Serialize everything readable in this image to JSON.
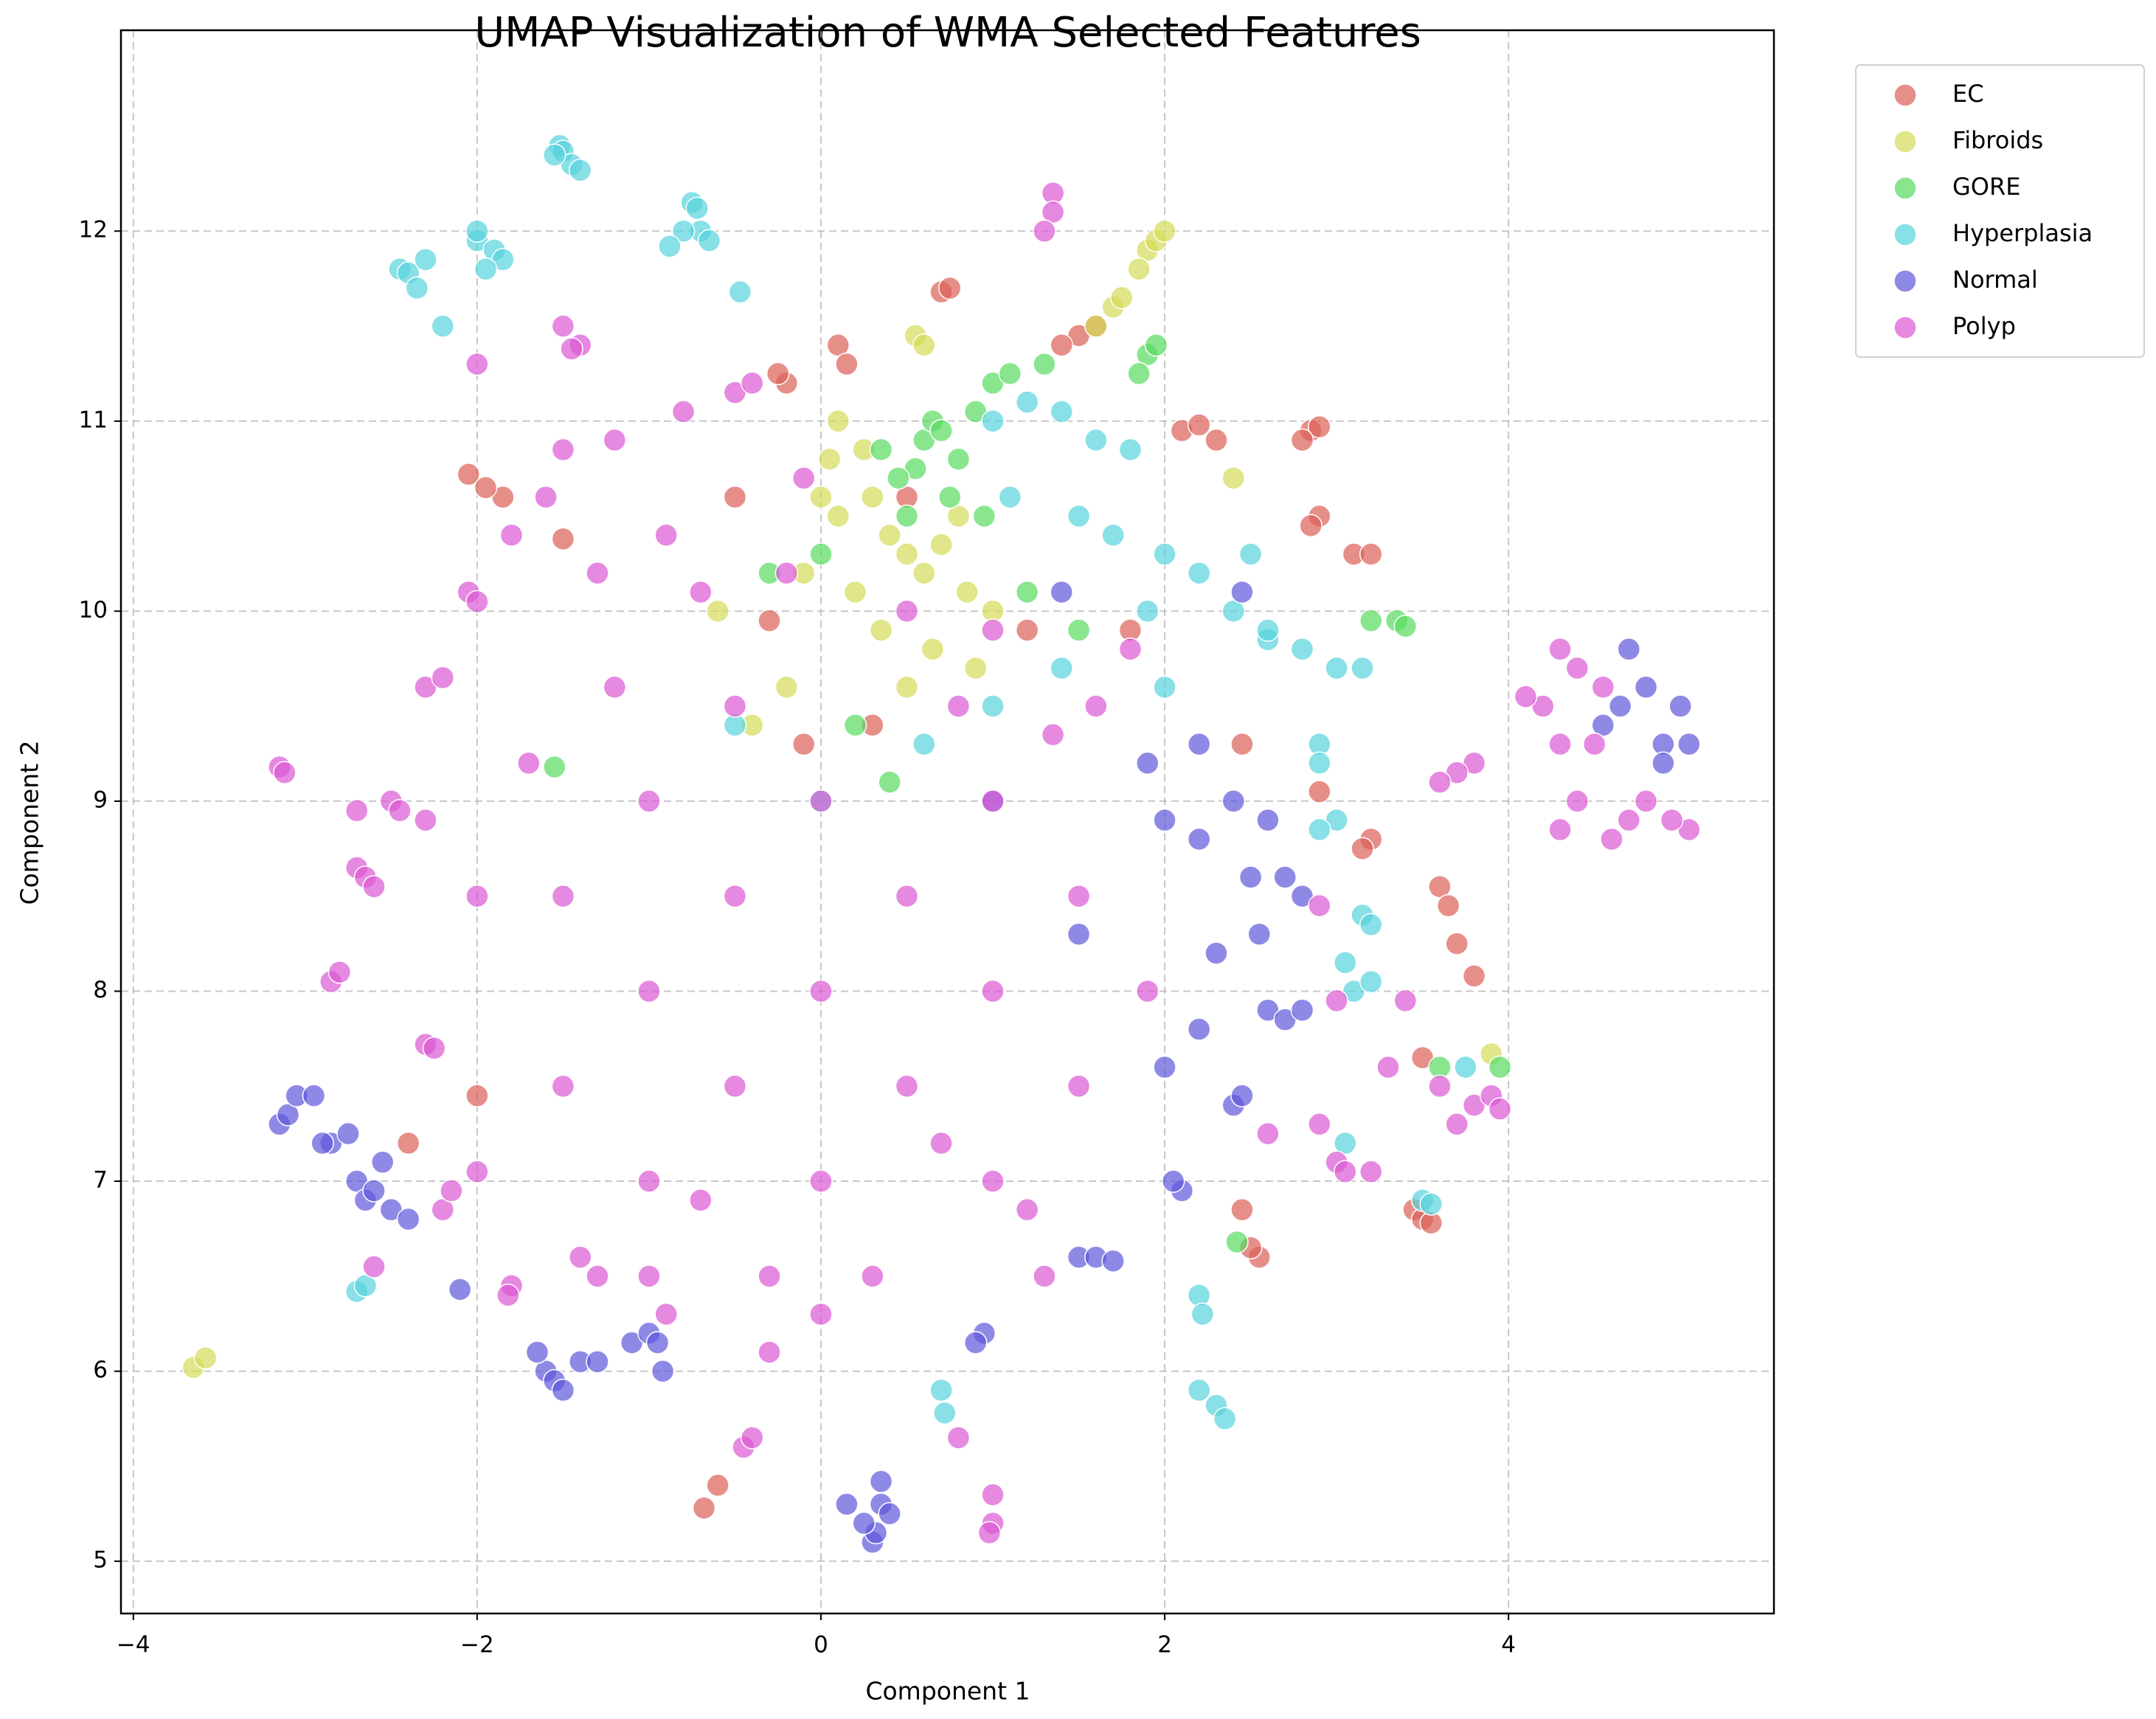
{
  "chart_data": {
    "type": "scatter",
    "title": "UMAP Visualization of WMA Selected Features",
    "x_label": "Component 1",
    "y_label": "Component 2",
    "xlim": [
      -4.072,
      5.544
    ],
    "ylim": [
      4.725,
      13.057
    ],
    "xticks": [
      {
        "value": -4,
        "label": "−4"
      },
      {
        "value": -2,
        "label": "−2"
      },
      0,
      2,
      4
    ],
    "yticks": [
      5,
      6,
      7,
      8,
      9,
      10,
      11,
      12
    ],
    "grid": true,
    "legend": "outside-upper-right",
    "series": [
      {
        "name": "EC",
        "color": "#db5f57",
        "x": [
          -0.68,
          -0.6,
          -2.4,
          -2.0,
          -2.05,
          -1.85,
          -1.95,
          0.1,
          0.15,
          0.7,
          0.75,
          1.5,
          1.6,
          1.4,
          2.1,
          2.2,
          2.3,
          2.85,
          2.9,
          2.8,
          2.9,
          2.85,
          3.1,
          3.2,
          3.6,
          3.65,
          3.7,
          3.8,
          3.2,
          3.15,
          3.5,
          3.45,
          3.5,
          3.55,
          2.55,
          2.5,
          2.45,
          -0.2,
          -0.25,
          -1.5,
          0.5,
          -0.3,
          -0.5,
          1.8,
          2.9,
          2.45,
          1.2,
          -0.1,
          0.3
        ],
        "y": [
          5.28,
          5.4,
          7.2,
          7.45,
          10.72,
          10.6,
          10.65,
          11.4,
          11.3,
          11.68,
          11.7,
          11.45,
          11.5,
          11.4,
          10.95,
          10.98,
          10.9,
          10.95,
          10.97,
          10.9,
          10.5,
          10.45,
          10.3,
          10.3,
          8.55,
          8.45,
          8.25,
          8.08,
          8.8,
          8.75,
          7.65,
          6.85,
          6.8,
          6.78,
          6.6,
          6.65,
          6.85,
          11.2,
          11.25,
          10.38,
          10.6,
          9.95,
          10.6,
          9.9,
          9.05,
          9.3,
          9.9,
          9.3,
          9.4
        ]
      },
      {
        "name": "Fibroids",
        "color": "#d3db57",
        "x": [
          -3.65,
          -3.58,
          1.9,
          1.95,
          2.0,
          1.85,
          1.7,
          1.75,
          1.6,
          0.55,
          0.6,
          0.1,
          0.05,
          0.3,
          0.4,
          0.5,
          0.6,
          0.7,
          0.8,
          0.2,
          0.35,
          0.65,
          0.9,
          -0.1,
          -0.2,
          -0.4,
          0.1,
          0.85,
          0.5,
          1.0,
          2.4,
          3.9,
          -0.6,
          0.0,
          0.25
        ],
        "y": [
          6.02,
          6.07,
          11.9,
          11.95,
          12.0,
          11.8,
          11.6,
          11.65,
          11.5,
          11.45,
          11.4,
          11.0,
          10.8,
          10.6,
          10.4,
          10.3,
          10.2,
          10.35,
          10.5,
          10.1,
          9.9,
          9.8,
          9.7,
          10.2,
          9.6,
          9.4,
          10.5,
          10.1,
          9.6,
          10.0,
          10.7,
          7.67,
          10.0,
          10.6,
          10.85
        ]
      },
      {
        "name": "GORE",
        "color": "#57db5f",
        "x": [
          0.6,
          0.65,
          0.7,
          0.8,
          0.55,
          0.9,
          1.0,
          1.1,
          1.3,
          1.9,
          1.95,
          1.85,
          0.45,
          0.75,
          0.35,
          0.5,
          1.2,
          3.35,
          3.4,
          3.2,
          2.42,
          3.95,
          3.6,
          -1.55,
          0.0,
          1.5,
          0.2,
          -0.3,
          0.4,
          0.95
        ],
        "y": [
          10.9,
          11.0,
          10.95,
          10.8,
          10.75,
          11.05,
          11.2,
          11.25,
          11.3,
          11.35,
          11.4,
          11.25,
          10.7,
          10.6,
          10.85,
          10.5,
          10.1,
          9.95,
          9.92,
          9.95,
          6.68,
          7.6,
          7.6,
          9.18,
          10.3,
          9.9,
          9.4,
          10.2,
          9.1,
          10.5
        ]
      },
      {
        "name": "Hyperplasia",
        "color": "#57d3db",
        "x": [
          -1.52,
          -1.5,
          -1.45,
          -1.4,
          -1.55,
          -2.45,
          -2.4,
          -2.3,
          -2.35,
          -2.2,
          -2.0,
          -2.0,
          -1.9,
          -1.85,
          -1.95,
          -0.75,
          -0.72,
          -0.7,
          -0.65,
          -0.8,
          -0.88,
          -0.47,
          1.0,
          1.2,
          1.4,
          1.6,
          1.8,
          1.5,
          1.7,
          2.0,
          2.2,
          2.4,
          2.6,
          2.8,
          3.0,
          3.15,
          2.9,
          2.9,
          2.0,
          1.4,
          1.0,
          0.6,
          2.6,
          3.0,
          2.9,
          3.15,
          3.2,
          3.05,
          3.1,
          3.2,
          2.2,
          2.22,
          2.2,
          2.3,
          2.35,
          3.05,
          3.5,
          3.55,
          0.7,
          0.72,
          -2.7,
          -2.65,
          3.75,
          0.0,
          -0.5,
          1.9,
          2.5,
          1.1
        ],
        "y": [
          12.45,
          12.42,
          12.35,
          12.32,
          12.4,
          11.8,
          11.78,
          11.85,
          11.7,
          11.5,
          11.95,
          12.0,
          11.9,
          11.85,
          11.8,
          12.15,
          12.12,
          12.0,
          11.95,
          12.0,
          11.92,
          11.68,
          11.0,
          11.1,
          11.05,
          10.9,
          10.85,
          10.5,
          10.4,
          10.3,
          10.2,
          10.0,
          9.85,
          9.8,
          9.7,
          9.7,
          9.3,
          9.2,
          9.6,
          9.7,
          9.5,
          9.3,
          9.9,
          8.9,
          8.85,
          8.4,
          8.35,
          8.15,
          8.0,
          8.05,
          6.4,
          6.3,
          5.9,
          5.82,
          5.75,
          7.2,
          6.9,
          6.88,
          5.9,
          5.78,
          6.42,
          6.45,
          7.6,
          9.0,
          9.4,
          10.0,
          10.3,
          10.6
        ]
      },
      {
        "name": "Normal",
        "color": "#5f57db",
        "x": [
          -3.15,
          -3.1,
          -3.05,
          -2.95,
          -2.85,
          -2.75,
          -2.9,
          -2.7,
          -2.65,
          -2.6,
          -2.5,
          -2.4,
          -2.55,
          -1.6,
          -1.55,
          -1.5,
          -1.4,
          -1.3,
          -1.65,
          -1.1,
          -1.0,
          -0.95,
          -0.92,
          -2.1,
          0.3,
          0.32,
          0.25,
          0.35,
          0.4,
          0.15,
          0.35,
          0.95,
          0.9,
          1.5,
          1.6,
          1.7,
          2.1,
          2.05,
          2.4,
          2.45,
          2.0,
          2.2,
          2.3,
          2.5,
          2.6,
          2.4,
          2.7,
          2.8,
          2.55,
          2.2,
          1.9,
          2.0,
          2.6,
          2.7,
          2.8,
          2.2,
          4.7,
          4.8,
          4.9,
          5.0,
          5.05,
          4.65,
          4.55,
          4.9,
          1.4,
          1.0,
          1.5,
          2.45
        ],
        "y": [
          7.3,
          7.35,
          7.45,
          7.45,
          7.2,
          7.25,
          7.2,
          7.0,
          6.9,
          6.95,
          6.85,
          6.8,
          7.1,
          6.0,
          5.95,
          5.9,
          6.05,
          6.05,
          6.1,
          6.15,
          6.2,
          6.15,
          6.0,
          6.43,
          5.1,
          5.15,
          5.2,
          5.3,
          5.25,
          5.3,
          5.42,
          6.2,
          6.15,
          6.6,
          6.6,
          6.58,
          6.95,
          7.0,
          7.4,
          7.45,
          7.6,
          7.8,
          8.2,
          8.6,
          8.9,
          9.0,
          8.6,
          8.5,
          8.3,
          8.8,
          9.2,
          8.9,
          7.9,
          7.85,
          7.9,
          9.3,
          9.8,
          9.6,
          9.3,
          9.5,
          9.3,
          9.5,
          9.4,
          9.2,
          10.1,
          9.0,
          8.3,
          10.1
        ]
      },
      {
        "name": "Polyp",
        "color": "#db57d3",
        "x": [
          0,
          -0.5,
          0.5,
          -1,
          1,
          -0.5,
          0.5,
          -1.5,
          1.5,
          0,
          0,
          -1,
          1,
          -1,
          1,
          -1.5,
          1.5,
          -2,
          1.9,
          -0.3,
          0.3,
          0,
          -0.5,
          -1.2,
          -1.7,
          -1.3,
          -0.9,
          -1.6,
          -1.8,
          -1.5,
          -1.2,
          -0.8,
          -0.5,
          -0.4,
          -1.5,
          -1.4,
          -1.45,
          1.35,
          1.35,
          1.3,
          -2.0,
          -2.05,
          -2.0,
          -2.3,
          -2.2,
          -3.15,
          -3.12,
          -2.5,
          -2.45,
          -2.3,
          -2.7,
          -2.7,
          -2.65,
          -2.6,
          -2.85,
          -2.8,
          -2.3,
          -2.25,
          -2.0,
          -2.2,
          -2.15,
          -1.8,
          -1.82,
          -2.6,
          -1.4,
          -1.3,
          -0.9,
          -0.3,
          -0.45,
          -0.4,
          1.0,
          1.0,
          0.98,
          0.8,
          1.3,
          2.6,
          2.9,
          3.0,
          3.05,
          3.2,
          3.3,
          3.6,
          3.8,
          3.7,
          3.9,
          3.95,
          3.8,
          3.7,
          3.6,
          4.3,
          4.4,
          4.2,
          4.3,
          4.4,
          4.3,
          4.6,
          4.7,
          5.05,
          4.95,
          4.8,
          4.1,
          4.55,
          4.5,
          2.9,
          3.0,
          3.4,
          0.5,
          1.0,
          1.6,
          1.8,
          1.35,
          0.8,
          -0.2,
          -0.7,
          -0.1,
          0.7,
          -0.7,
          1.2,
          -1.0
        ],
        "y": [
          8,
          8.5,
          8.5,
          8,
          8,
          7.5,
          7.5,
          8.5,
          8.5,
          9,
          7,
          9,
          9,
          7,
          7,
          7.5,
          7.5,
          8.5,
          8.0,
          6.5,
          6.5,
          6.3,
          9.5,
          9.6,
          9.2,
          10.2,
          10.4,
          10.6,
          10.4,
          10.85,
          10.9,
          11.05,
          11.15,
          11.2,
          11.5,
          11.4,
          11.38,
          12.2,
          12.1,
          12.0,
          11.3,
          10.1,
          10.05,
          9.6,
          9.65,
          9.18,
          9.15,
          9.0,
          8.95,
          8.9,
          8.95,
          8.65,
          8.6,
          8.55,
          8.05,
          8.1,
          7.72,
          7.7,
          7.05,
          6.85,
          6.95,
          6.45,
          6.4,
          6.55,
          6.6,
          6.5,
          6.3,
          6.1,
          5.6,
          5.65,
          5.35,
          5.2,
          5.15,
          5.65,
          6.5,
          7.25,
          7.3,
          7.1,
          7.05,
          7.05,
          7.6,
          7.5,
          7.4,
          7.3,
          7.45,
          7.38,
          9.2,
          9.15,
          9.1,
          9.8,
          9.7,
          9.5,
          9.3,
          9.0,
          8.85,
          8.8,
          8.9,
          8.85,
          8.9,
          9.0,
          9.55,
          9.6,
          9.3,
          8.45,
          7.95,
          7.95,
          10.0,
          9.9,
          9.5,
          9.8,
          9.35,
          9.5,
          10.2,
          10.1,
          10.7,
          7.2,
          6.9,
          6.85,
          6.5
        ]
      }
    ]
  }
}
